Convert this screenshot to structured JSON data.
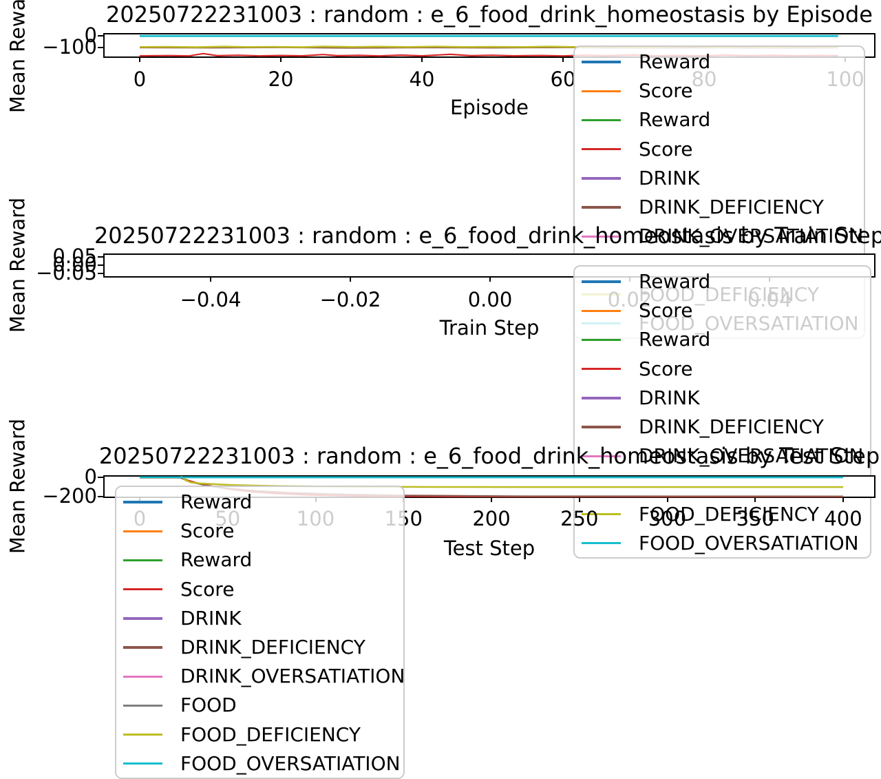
{
  "figure": {
    "background": "#ffffff"
  },
  "chart_data": {
    "type": "line",
    "legend": {
      "entries": [
        {
          "label": "Reward",
          "color": "#1f77b4"
        },
        {
          "label": "Score",
          "color": "#ff7f0e"
        },
        {
          "label": "Reward",
          "color": "#2ca02c"
        },
        {
          "label": "Score",
          "color": "#d62728"
        },
        {
          "label": "DRINK",
          "color": "#9467bd"
        },
        {
          "label": "DRINK_DEFICIENCY",
          "color": "#8c564b"
        },
        {
          "label": "DRINK_OVERSATIATION",
          "color": "#e377c2"
        },
        {
          "label": "FOOD",
          "color": "#7f7f7f"
        },
        {
          "label": "FOOD_DEFICIENCY",
          "color": "#bcbd22"
        },
        {
          "label": "FOOD_OVERSATIATION",
          "color": "#17becf"
        }
      ]
    },
    "charts": [
      {
        "title": "20250722231003 : random : e_6_food_drink_homeostasis by Episode",
        "xlabel": "Episode",
        "ylabel": "Mean Reward",
        "xlim": [
          0,
          100
        ],
        "ylim": [
          -185,
          10
        ],
        "grid": false,
        "legend_loc": "upper right",
        "xticks": [
          {
            "v": 0,
            "label": "0"
          },
          {
            "v": 20,
            "label": "20"
          },
          {
            "v": 40,
            "label": "40"
          },
          {
            "v": 60,
            "label": "60"
          },
          {
            "v": 80,
            "label": "80"
          },
          {
            "v": 100,
            "label": "100"
          }
        ],
        "yticks": [
          {
            "v": 0,
            "label": "0"
          },
          {
            "v": -100,
            "label": "−100"
          }
        ],
        "series": [
          {
            "name": "Score",
            "color": "#d62728",
            "lw": 2.2,
            "points": [
              [
                0,
                -171
              ],
              [
                4,
                -169
              ],
              [
                7,
                -172
              ],
              [
                9,
                -152
              ],
              [
                11,
                -170
              ],
              [
                14,
                -166
              ],
              [
                17,
                -172
              ],
              [
                20,
                -168
              ],
              [
                23,
                -171
              ],
              [
                26,
                -160
              ],
              [
                28,
                -170
              ],
              [
                31,
                -167
              ],
              [
                34,
                -172
              ],
              [
                37,
                -165
              ],
              [
                40,
                -171
              ],
              [
                44,
                -158
              ],
              [
                47,
                -170
              ],
              [
                50,
                -166
              ],
              [
                53,
                -171
              ],
              [
                57,
                -168
              ],
              [
                60,
                -172
              ],
              [
                63,
                -166
              ],
              [
                66,
                -170
              ],
              [
                70,
                -164
              ],
              [
                73,
                -171
              ],
              [
                76,
                -168
              ],
              [
                80,
                -171
              ],
              [
                83,
                -165
              ],
              [
                86,
                -170
              ],
              [
                90,
                -167
              ],
              [
                93,
                -171
              ],
              [
                96,
                -168
              ],
              [
                99,
                -170
              ]
            ]
          },
          {
            "name": "DRINK_DEFICIENCY",
            "color": "#8c564b",
            "lw": 2.2,
            "points": [
              [
                0,
                -100
              ],
              [
                10,
                -102
              ],
              [
                20,
                -99
              ],
              [
                30,
                -103
              ],
              [
                40,
                -100
              ],
              [
                50,
                -102
              ],
              [
                60,
                -99
              ],
              [
                70,
                -102
              ],
              [
                80,
                -100
              ],
              [
                90,
                -102
              ],
              [
                99,
                -100
              ]
            ]
          },
          {
            "name": "FOOD_DEFICIENCY",
            "color": "#bcbd22",
            "lw": 2.5,
            "points": [
              [
                0,
                -96
              ],
              [
                4,
                -94
              ],
              [
                8,
                -97
              ],
              [
                12,
                -92
              ],
              [
                15,
                -96
              ],
              [
                19,
                -94
              ],
              [
                23,
                -97
              ],
              [
                26,
                -91
              ],
              [
                30,
                -95
              ],
              [
                34,
                -93
              ],
              [
                38,
                -96
              ],
              [
                42,
                -92
              ],
              [
                46,
                -96
              ],
              [
                50,
                -94
              ],
              [
                54,
                -96
              ],
              [
                58,
                -92
              ],
              [
                62,
                -95
              ],
              [
                66,
                -93
              ],
              [
                70,
                -96
              ],
              [
                74,
                -94
              ],
              [
                78,
                -90
              ],
              [
                82,
                -95
              ],
              [
                86,
                -93
              ],
              [
                90,
                -96
              ],
              [
                94,
                -92
              ],
              [
                99,
                -95
              ]
            ]
          },
          {
            "name": "FOOD_OVERSATIATION",
            "color": "#17becf",
            "lw": 2.8,
            "points": [
              [
                0,
                -2
              ],
              [
                99,
                -2
              ]
            ]
          }
        ]
      },
      {
        "title": "20250722231003 : random : e_6_food_drink_homeostasis by Train Step",
        "xlabel": "Train Step",
        "ylabel": "Mean Reward",
        "xlim": [
          -0.05,
          0.05
        ],
        "ylim": [
          -0.055,
          0.055
        ],
        "grid": false,
        "legend_loc": "center right",
        "xticks": [
          {
            "v": -0.04,
            "label": "−0.04"
          },
          {
            "v": -0.02,
            "label": "−0.02"
          },
          {
            "v": 0.0,
            "label": "0.00"
          },
          {
            "v": 0.02,
            "label": "0.02"
          },
          {
            "v": 0.04,
            "label": "0.04"
          }
        ],
        "yticks": [
          {
            "v": 0.05,
            "label": "0.05"
          },
          {
            "v": 0.0,
            "label": "0.00"
          },
          {
            "v": -0.05,
            "label": "−0.05"
          }
        ],
        "series": []
      },
      {
        "title": "20250722231003 : random : e_6_food_drink_homeostasis by Test Step",
        "xlabel": "Test Step",
        "ylabel": "Mean Reward",
        "xlim": [
          0,
          400
        ],
        "ylim": [
          -210,
          10
        ],
        "grid": false,
        "legend_loc": "lower left",
        "xticks": [
          {
            "v": 0,
            "label": "0"
          },
          {
            "v": 50,
            "label": "50"
          },
          {
            "v": 100,
            "label": "100"
          },
          {
            "v": 150,
            "label": "150"
          },
          {
            "v": 200,
            "label": "200"
          },
          {
            "v": 250,
            "label": "250"
          },
          {
            "v": 300,
            "label": "300"
          },
          {
            "v": 350,
            "label": "350"
          },
          {
            "v": 400,
            "label": "400"
          }
        ],
        "yticks": [
          {
            "v": 0,
            "label": "0"
          },
          {
            "v": -200,
            "label": "−200"
          }
        ],
        "series": [
          {
            "name": "Score",
            "color": "#d62728",
            "lw": 2.2,
            "points": [
              [
                0,
                -4
              ],
              [
                24,
                -4
              ],
              [
                27,
                -30
              ],
              [
                33,
                -60
              ],
              [
                42,
                -95
              ],
              [
                52,
                -125
              ],
              [
                64,
                -150
              ],
              [
                78,
                -168
              ],
              [
                95,
                -182
              ],
              [
                115,
                -191
              ],
              [
                140,
                -196
              ],
              [
                175,
                -199
              ],
              [
                230,
                -200
              ],
              [
                400,
                -200
              ]
            ]
          },
          {
            "name": "DRINK_DEFICIENCY",
            "color": "#8c564b",
            "lw": 2.2,
            "points": [
              [
                0,
                -3
              ],
              [
                23,
                -3
              ],
              [
                28,
                -45
              ],
              [
                38,
                -85
              ],
              [
                50,
                -115
              ],
              [
                65,
                -140
              ],
              [
                85,
                -160
              ],
              [
                110,
                -175
              ],
              [
                150,
                -188
              ],
              [
                210,
                -196
              ],
              [
                400,
                -198
              ]
            ]
          },
          {
            "name": "FOOD_DEFICIENCY",
            "color": "#bcbd22",
            "lw": 2.5,
            "points": [
              [
                0,
                -2
              ],
              [
                22,
                -2
              ],
              [
                24,
                6
              ],
              [
                26,
                -30
              ],
              [
                29,
                -52
              ],
              [
                34,
                -62
              ],
              [
                42,
                -71
              ],
              [
                52,
                -79
              ],
              [
                65,
                -86
              ],
              [
                80,
                -91
              ],
              [
                100,
                -95
              ],
              [
                130,
                -98
              ],
              [
                170,
                -100
              ],
              [
                220,
                -101
              ],
              [
                400,
                -101
              ]
            ]
          },
          {
            "name": "FOOD_OVERSATIATION",
            "color": "#17becf",
            "lw": 2.8,
            "points": [
              [
                0,
                0
              ],
              [
                400,
                0
              ]
            ]
          }
        ]
      }
    ]
  }
}
